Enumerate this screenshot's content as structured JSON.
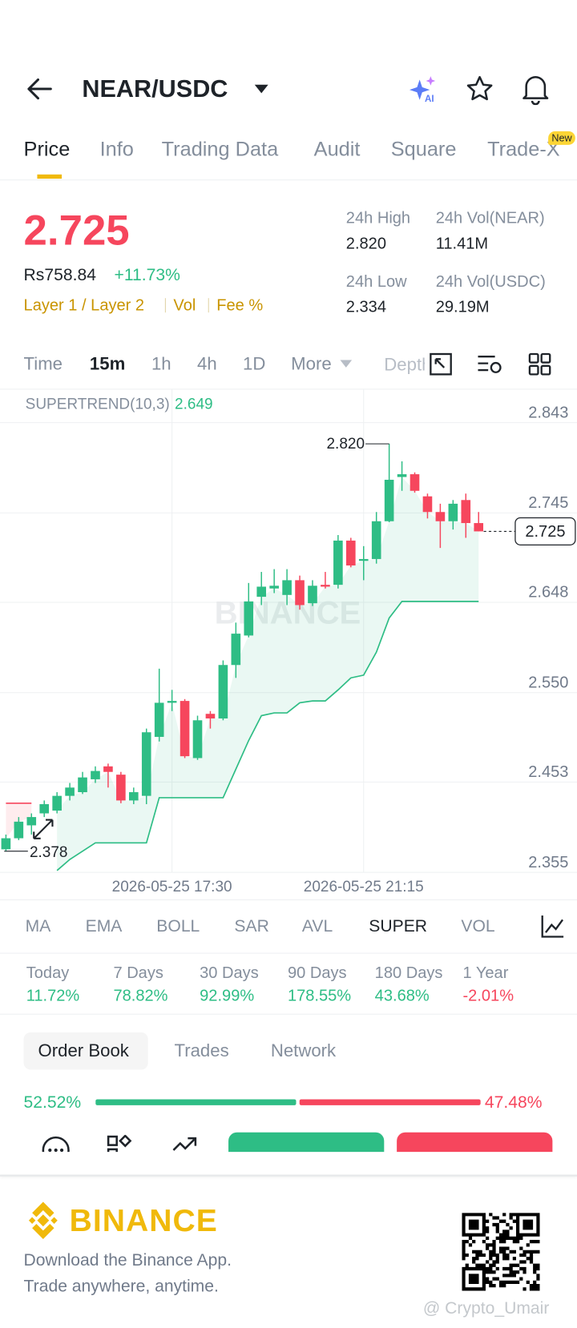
{
  "header": {
    "pair": "NEAR/USDC"
  },
  "tabs": [
    "Price",
    "Info",
    "Trading Data",
    "Audit",
    "Square",
    "Trade-X"
  ],
  "new_badge": "New",
  "price": {
    "last": "2.725",
    "fiat": "Rs758.84",
    "change": "+11.73%",
    "tags": [
      "Layer 1 / Layer 2",
      "Vol",
      "Fee %"
    ]
  },
  "stats": [
    {
      "label": "24h High",
      "value": "2.820"
    },
    {
      "label": "24h Vol(NEAR)",
      "value": "11.41M"
    },
    {
      "label": "24h Low",
      "value": "2.334"
    },
    {
      "label": "24h Vol(USDC)",
      "value": "29.19M"
    }
  ],
  "intervals": [
    "Time",
    "15m",
    "1h",
    "4h",
    "1D",
    "More",
    "Depth"
  ],
  "chart_data": {
    "type": "candlestick",
    "indicator": "SUPERTREND(10,3)",
    "supertrend_value": 2.649,
    "watermark": "BINANCE",
    "categories": [
      null,
      null,
      null,
      null,
      null,
      null,
      null,
      null,
      null,
      null,
      null,
      null,
      null,
      "2026-05-25 17:30",
      null,
      null,
      null,
      null,
      null,
      null,
      null,
      null,
      null,
      null,
      null,
      null,
      null,
      null,
      "2026-05-25 21:15",
      null,
      null,
      null,
      null,
      null,
      null,
      null,
      null,
      null
    ],
    "open": [
      2.38,
      2.392,
      2.406,
      2.419,
      2.422,
      2.438,
      2.442,
      2.456,
      2.47,
      2.461,
      2.433,
      2.438,
      2.502,
      2.539,
      2.541,
      2.479,
      2.527,
      2.522,
      2.58,
      2.612,
      2.654,
      2.663,
      2.656,
      2.672,
      2.647,
      2.667,
      2.667,
      2.715,
      2.693,
      2.695,
      2.736,
      2.784,
      2.787,
      2.763,
      2.746,
      2.736,
      2.759,
      2.734
    ],
    "high": [
      2.396,
      2.415,
      2.419,
      2.433,
      2.442,
      2.452,
      2.464,
      2.47,
      2.473,
      2.464,
      2.447,
      2.511,
      2.576,
      2.553,
      2.543,
      2.525,
      2.53,
      2.585,
      2.626,
      2.669,
      2.681,
      2.684,
      2.684,
      2.677,
      2.672,
      2.681,
      2.721,
      2.718,
      2.709,
      2.746,
      2.82,
      2.801,
      2.789,
      2.766,
      2.755,
      2.759,
      2.766,
      2.746
    ],
    "low": [
      2.378,
      2.39,
      2.396,
      2.415,
      2.419,
      2.433,
      2.44,
      2.452,
      2.447,
      2.43,
      2.429,
      2.429,
      2.497,
      2.53,
      2.479,
      2.477,
      2.511,
      2.52,
      2.566,
      2.61,
      2.645,
      2.658,
      2.645,
      2.64,
      2.644,
      2.663,
      2.663,
      2.686,
      2.672,
      2.69,
      2.735,
      2.769,
      2.767,
      2.739,
      2.707,
      2.727,
      2.718,
      2.725
    ],
    "close": [
      2.392,
      2.41,
      2.415,
      2.429,
      2.438,
      2.447,
      2.458,
      2.465,
      2.464,
      2.433,
      2.442,
      2.507,
      2.539,
      2.541,
      2.481,
      2.52,
      2.522,
      2.58,
      2.614,
      2.649,
      2.665,
      2.666,
      2.672,
      2.645,
      2.666,
      2.665,
      2.715,
      2.688,
      2.695,
      2.736,
      2.781,
      2.787,
      2.769,
      2.746,
      2.736,
      2.755,
      2.734,
      2.725
    ],
    "supertrend_up": [
      null,
      null,
      null,
      null,
      2.357,
      2.369,
      2.378,
      2.387,
      2.387,
      2.387,
      2.387,
      2.387,
      2.436,
      2.436,
      2.436,
      2.436,
      2.436,
      2.436,
      2.467,
      2.498,
      2.525,
      2.528,
      2.528,
      2.539,
      2.541,
      2.541,
      2.553,
      2.566,
      2.569,
      2.594,
      2.631,
      2.649,
      2.649,
      2.649,
      2.649,
      2.649,
      2.649,
      2.649
    ],
    "supertrend_down": [
      2.43,
      2.43,
      2.43,
      null,
      null,
      null,
      null,
      null,
      null,
      null,
      null,
      null,
      null,
      null,
      null,
      null,
      null,
      null,
      null,
      null,
      null,
      null,
      null,
      null,
      null,
      null,
      null,
      null,
      null,
      null,
      null,
      null,
      null,
      null,
      null,
      null,
      null,
      null
    ],
    "up_color": "#2ebd85",
    "down_color": "#f6465d",
    "ylim": [
      2.355,
      2.843
    ],
    "yticks": [
      2.843,
      2.745,
      2.648,
      {
        "value": 2.55,
        "label": "2.550"
      },
      2.453,
      2.355
    ],
    "grid": true,
    "high_marker": {
      "value": 2.82,
      "label": "2.820"
    },
    "low_marker": {
      "value": 2.378,
      "label": "2.378"
    },
    "last_price": {
      "value": 2.725,
      "label": "2.725"
    }
  },
  "indicators": [
    "MA",
    "EMA",
    "BOLL",
    "SAR",
    "AVL",
    "SUPER",
    "VOL"
  ],
  "performance": [
    {
      "period": "Today",
      "value": "11.72%"
    },
    {
      "period": "7 Days",
      "value": "78.82%"
    },
    {
      "period": "30 Days",
      "value": "92.99%"
    },
    {
      "period": "90 Days",
      "value": "178.55%"
    },
    {
      "period": "180 Days",
      "value": "43.68%"
    },
    {
      "period": "1 Year",
      "value": "-2.01%"
    }
  ],
  "order_book": {
    "tabs": [
      "Order Book",
      "Trades",
      "Network"
    ],
    "bid": {
      "value": 52.52,
      "label": "52.52%"
    },
    "ask": {
      "value": 47.48,
      "label": "47.48%"
    }
  },
  "footer": {
    "brand": "BINANCE",
    "line1": "Download the Binance App.",
    "line2": "Trade anywhere, anytime.",
    "watermark": "@ Crypto_Umair"
  }
}
